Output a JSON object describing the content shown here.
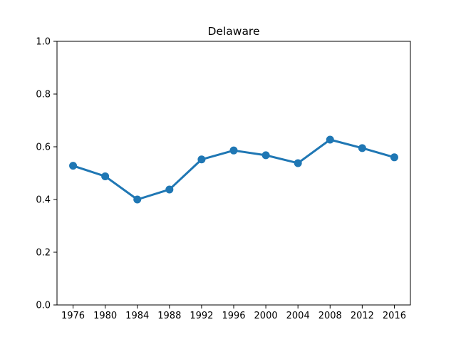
{
  "chart_data": {
    "type": "line",
    "title": "Delaware",
    "xlabel": "",
    "ylabel": "",
    "categories": [
      "1976",
      "1980",
      "1984",
      "1988",
      "1992",
      "1996",
      "2000",
      "2004",
      "2008",
      "2012",
      "2016"
    ],
    "series": [
      {
        "values": [
          0.528,
          0.488,
          0.4,
          0.438,
          0.552,
          0.586,
          0.568,
          0.538,
          0.627,
          0.595,
          0.56
        ]
      }
    ],
    "ylim": [
      0.0,
      1.0
    ],
    "yticks": [
      "0.0",
      "0.2",
      "0.4",
      "0.6",
      "0.8",
      "1.0"
    ],
    "grid": false,
    "colors": {
      "line": "#1f77b4",
      "axes": "#000000",
      "background": "#ffffff"
    }
  }
}
